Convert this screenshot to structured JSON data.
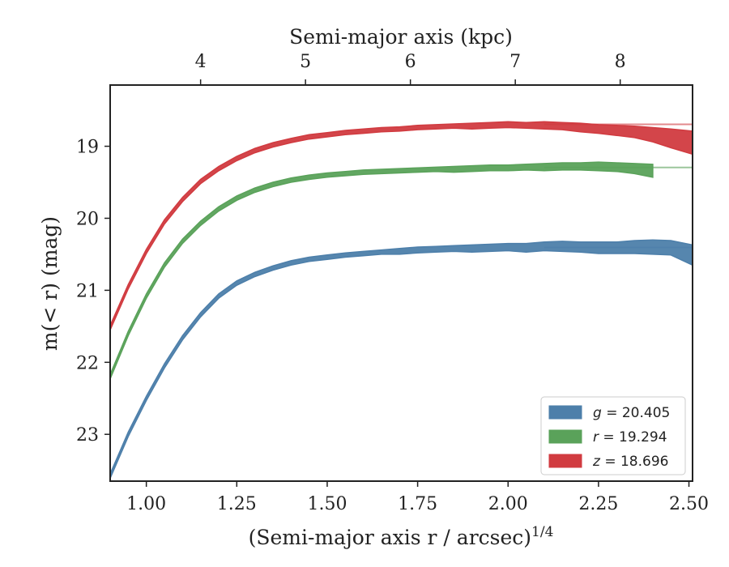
{
  "chart_data": {
    "type": "area",
    "xlabel": "(Semi-major axis r / arcsec)",
    "xlabel_sup": "1/4",
    "ylabel": "m(< r) (mag)",
    "top_xlabel": "Semi-major axis (kpc)",
    "xlim": [
      0.9,
      2.51
    ],
    "ylim": [
      23.65,
      18.15
    ],
    "y_inverted": true,
    "x_ticks": [
      1.0,
      1.25,
      1.5,
      1.75,
      2.0,
      2.25,
      2.5
    ],
    "x_tick_labels": [
      "1.00",
      "1.25",
      "1.50",
      "1.75",
      "2.00",
      "2.25",
      "2.50"
    ],
    "y_ticks": [
      19,
      20,
      21,
      22,
      23
    ],
    "y_tick_labels": [
      "19",
      "20",
      "21",
      "22",
      "23"
    ],
    "top_ticks": [
      {
        "label": "4",
        "at_x": 1.15
      },
      {
        "label": "5",
        "at_x": 1.44
      },
      {
        "label": "6",
        "at_x": 1.73
      },
      {
        "label": "7",
        "at_x": 2.02
      },
      {
        "label": "8",
        "at_x": 2.31
      }
    ],
    "legend_position": "lower-right",
    "grid": false,
    "series": [
      {
        "name": "g = 20.405",
        "legend_var": "g",
        "legend_val": "20.405",
        "color": "#4d7faa",
        "asymptote": 20.405,
        "x": [
          0.9,
          0.95,
          1.0,
          1.05,
          1.1,
          1.15,
          1.2,
          1.25,
          1.3,
          1.35,
          1.4,
          1.45,
          1.5,
          1.55,
          1.6,
          1.65,
          1.7,
          1.75,
          1.8,
          1.85,
          1.9,
          1.95,
          2.0,
          2.05,
          2.1,
          2.15,
          2.2,
          2.25,
          2.3,
          2.35,
          2.4,
          2.45,
          2.51
        ],
        "y": [
          23.58,
          23.0,
          22.5,
          22.05,
          21.66,
          21.34,
          21.08,
          20.9,
          20.78,
          20.69,
          20.62,
          20.57,
          20.54,
          20.51,
          20.49,
          20.47,
          20.46,
          20.44,
          20.43,
          20.42,
          20.42,
          20.41,
          20.4,
          20.41,
          20.39,
          20.39,
          20.4,
          20.41,
          20.41,
          20.4,
          20.4,
          20.41,
          20.51
        ],
        "width": [
          0.03,
          0.03,
          0.03,
          0.03,
          0.03,
          0.03,
          0.03,
          0.03,
          0.03,
          0.03,
          0.03,
          0.03,
          0.03,
          0.03,
          0.03,
          0.03,
          0.04,
          0.04,
          0.04,
          0.04,
          0.05,
          0.05,
          0.05,
          0.06,
          0.06,
          0.07,
          0.07,
          0.08,
          0.08,
          0.09,
          0.1,
          0.1,
          0.14
        ]
      },
      {
        "name": "r = 19.294",
        "legend_var": "r",
        "legend_val": "19.294",
        "color": "#5aa25a",
        "asymptote": 19.294,
        "end_x": 2.4,
        "x": [
          0.9,
          0.95,
          1.0,
          1.05,
          1.1,
          1.15,
          1.2,
          1.25,
          1.3,
          1.35,
          1.4,
          1.45,
          1.5,
          1.55,
          1.6,
          1.65,
          1.7,
          1.75,
          1.8,
          1.85,
          1.9,
          1.95,
          2.0,
          2.05,
          2.1,
          2.15,
          2.2,
          2.25,
          2.3,
          2.35,
          2.4
        ],
        "y": [
          22.2,
          21.6,
          21.08,
          20.65,
          20.32,
          20.07,
          19.87,
          19.72,
          19.61,
          19.53,
          19.47,
          19.43,
          19.4,
          19.38,
          19.36,
          19.35,
          19.34,
          19.33,
          19.32,
          19.32,
          19.31,
          19.3,
          19.3,
          19.29,
          19.29,
          19.28,
          19.28,
          19.28,
          19.29,
          19.31,
          19.34
        ],
        "width": [
          0.03,
          0.03,
          0.03,
          0.03,
          0.03,
          0.03,
          0.03,
          0.03,
          0.03,
          0.03,
          0.03,
          0.03,
          0.03,
          0.03,
          0.03,
          0.03,
          0.03,
          0.03,
          0.03,
          0.04,
          0.04,
          0.04,
          0.04,
          0.04,
          0.05,
          0.05,
          0.05,
          0.06,
          0.06,
          0.07,
          0.09
        ]
      },
      {
        "name": "z = 18.696",
        "legend_var": "z",
        "legend_val": "18.696",
        "color": "#d13b40",
        "asymptote": 18.696,
        "x": [
          0.9,
          0.95,
          1.0,
          1.05,
          1.1,
          1.15,
          1.2,
          1.25,
          1.3,
          1.35,
          1.4,
          1.45,
          1.5,
          1.55,
          1.6,
          1.65,
          1.7,
          1.75,
          1.8,
          1.85,
          1.9,
          1.95,
          2.0,
          2.05,
          2.1,
          2.15,
          2.2,
          2.25,
          2.3,
          2.35,
          2.4,
          2.45,
          2.51
        ],
        "y": [
          21.52,
          20.95,
          20.46,
          20.05,
          19.74,
          19.49,
          19.31,
          19.17,
          19.06,
          18.98,
          18.92,
          18.87,
          18.84,
          18.81,
          18.79,
          18.77,
          18.76,
          18.74,
          18.73,
          18.72,
          18.72,
          18.71,
          18.7,
          18.71,
          18.71,
          18.72,
          18.74,
          18.76,
          18.78,
          18.8,
          18.84,
          18.89,
          18.95
        ],
        "width": [
          0.03,
          0.03,
          0.03,
          0.03,
          0.03,
          0.03,
          0.03,
          0.03,
          0.03,
          0.03,
          0.03,
          0.03,
          0.03,
          0.03,
          0.03,
          0.03,
          0.03,
          0.03,
          0.03,
          0.03,
          0.04,
          0.04,
          0.04,
          0.04,
          0.05,
          0.05,
          0.06,
          0.06,
          0.07,
          0.08,
          0.1,
          0.13,
          0.16
        ]
      }
    ]
  }
}
